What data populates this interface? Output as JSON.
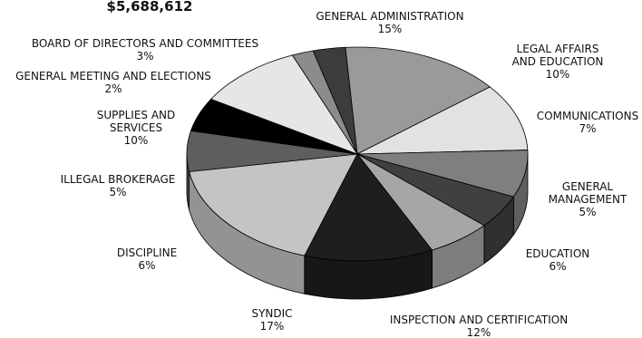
{
  "chart_data": {
    "type": "pie",
    "title": "$5,688,612",
    "slices": [
      {
        "label": "GENERAL ADMINISTRATION",
        "value": 15,
        "value_label": "15%",
        "color": "#9a9a9a"
      },
      {
        "label": "LEGAL AFFAIRS AND EDUCATION",
        "value": 10,
        "value_label": "10%",
        "color": "#e2e2e2"
      },
      {
        "label": "COMMUNICATIONS",
        "value": 7,
        "value_label": "7%",
        "color": "#7f7f7f"
      },
      {
        "label": "GENERAL MANAGEMENT",
        "value": 5,
        "value_label": "5%",
        "color": "#404040"
      },
      {
        "label": "EDUCATION",
        "value": 6,
        "value_label": "6%",
        "color": "#a6a6a6"
      },
      {
        "label": "INSPECTION AND CERTIFICATION",
        "value": 12,
        "value_label": "12%",
        "color": "#1e1e1e"
      },
      {
        "label": "SYNDIC",
        "value": 17,
        "value_label": "17%",
        "color": "#c4c4c4"
      },
      {
        "label": "DISCIPLINE",
        "value": 6,
        "value_label": "6%",
        "color": "#5e5e5e"
      },
      {
        "label": "ILLEGAL BROKERAGE",
        "value": 5,
        "value_label": "5%",
        "color": "#000000"
      },
      {
        "label": "SUPPLIES AND SERVICES",
        "value": 10,
        "value_label": "10%",
        "color": "#e6e6e6"
      },
      {
        "label": "GENERAL MEETING AND ELECTIONS",
        "value": 2,
        "value_label": "2%",
        "color": "#8c8c8c"
      },
      {
        "label": "BOARD OF DIRECTORS AND COMMITTEES",
        "value": 3,
        "value_label": "3%",
        "color": "#3c3c3c"
      }
    ]
  }
}
